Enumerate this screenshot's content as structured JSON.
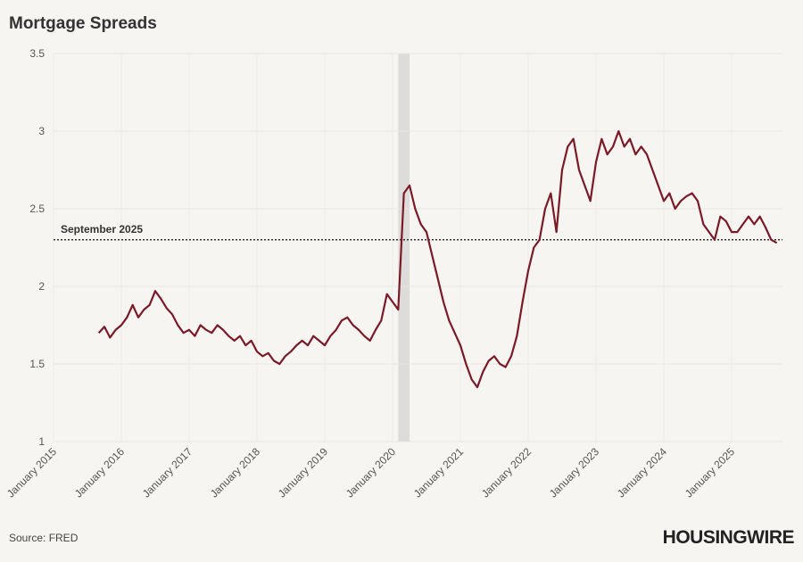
{
  "chart_data": {
    "type": "line",
    "title": "Mortgage Spreads",
    "source": "Source: FRED",
    "logo": "HOUSINGWIRE",
    "x": [
      "2015-09",
      "2015-10",
      "2015-11",
      "2015-12",
      "2016-01",
      "2016-02",
      "2016-03",
      "2016-04",
      "2016-05",
      "2016-06",
      "2016-07",
      "2016-08",
      "2016-09",
      "2016-10",
      "2016-11",
      "2016-12",
      "2017-01",
      "2017-02",
      "2017-03",
      "2017-04",
      "2017-05",
      "2017-06",
      "2017-07",
      "2017-08",
      "2017-09",
      "2017-10",
      "2017-11",
      "2017-12",
      "2018-01",
      "2018-02",
      "2018-03",
      "2018-04",
      "2018-05",
      "2018-06",
      "2018-07",
      "2018-08",
      "2018-09",
      "2018-10",
      "2018-11",
      "2018-12",
      "2019-01",
      "2019-02",
      "2019-03",
      "2019-04",
      "2019-05",
      "2019-06",
      "2019-07",
      "2019-08",
      "2019-09",
      "2019-10",
      "2019-11",
      "2019-12",
      "2020-01",
      "2020-02",
      "2020-03",
      "2020-04",
      "2020-05",
      "2020-06",
      "2020-07",
      "2020-08",
      "2020-09",
      "2020-10",
      "2020-11",
      "2020-12",
      "2021-01",
      "2021-02",
      "2021-03",
      "2021-04",
      "2021-05",
      "2021-06",
      "2021-07",
      "2021-08",
      "2021-09",
      "2021-10",
      "2021-11",
      "2021-12",
      "2022-01",
      "2022-02",
      "2022-03",
      "2022-04",
      "2022-05",
      "2022-06",
      "2022-07",
      "2022-08",
      "2022-09",
      "2022-10",
      "2022-11",
      "2022-12",
      "2023-01",
      "2023-02",
      "2023-03",
      "2023-04",
      "2023-05",
      "2023-06",
      "2023-07",
      "2023-08",
      "2023-09",
      "2023-10",
      "2023-11",
      "2023-12",
      "2024-01",
      "2024-02",
      "2024-03",
      "2024-04",
      "2024-05",
      "2024-06",
      "2024-07",
      "2024-08",
      "2024-09",
      "2024-10",
      "2024-11",
      "2024-12",
      "2025-01",
      "2025-02",
      "2025-03",
      "2025-04",
      "2025-05",
      "2025-06",
      "2025-07",
      "2025-08",
      "2025-09"
    ],
    "series": [
      {
        "name": "Mortgage Spreads",
        "color": "#7b1a26",
        "values": [
          1.7,
          1.74,
          1.67,
          1.72,
          1.75,
          1.8,
          1.88,
          1.8,
          1.85,
          1.88,
          1.97,
          1.92,
          1.86,
          1.82,
          1.75,
          1.7,
          1.72,
          1.68,
          1.75,
          1.72,
          1.7,
          1.75,
          1.72,
          1.68,
          1.65,
          1.68,
          1.62,
          1.65,
          1.58,
          1.55,
          1.57,
          1.52,
          1.5,
          1.55,
          1.58,
          1.62,
          1.65,
          1.62,
          1.68,
          1.65,
          1.62,
          1.68,
          1.72,
          1.78,
          1.8,
          1.75,
          1.72,
          1.68,
          1.65,
          1.72,
          1.78,
          1.95,
          1.9,
          1.85,
          2.6,
          2.65,
          2.5,
          2.4,
          2.35,
          2.2,
          2.05,
          1.9,
          1.78,
          1.7,
          1.62,
          1.5,
          1.4,
          1.35,
          1.45,
          1.52,
          1.55,
          1.5,
          1.48,
          1.55,
          1.68,
          1.9,
          2.1,
          2.25,
          2.3,
          2.5,
          2.6,
          2.35,
          2.75,
          2.9,
          2.95,
          2.75,
          2.65,
          2.55,
          2.8,
          2.95,
          2.85,
          2.9,
          3.0,
          2.9,
          2.95,
          2.85,
          2.9,
          2.85,
          2.75,
          2.65,
          2.55,
          2.6,
          2.5,
          2.55,
          2.58,
          2.6,
          2.55,
          2.4,
          2.35,
          2.3,
          2.45,
          2.42,
          2.35,
          2.35,
          2.4,
          2.45,
          2.4,
          2.45,
          2.38,
          2.3,
          2.28
        ]
      }
    ],
    "reference_line": {
      "value": 2.3,
      "label": "September 2025"
    },
    "shade": [
      "2020-02",
      "2020-04"
    ],
    "xlim": [
      "2015-01",
      "2025-10"
    ],
    "xticks": [
      {
        "value": "2015-01",
        "label": "January 2015"
      },
      {
        "value": "2016-01",
        "label": "January 2016"
      },
      {
        "value": "2017-01",
        "label": "January 2017"
      },
      {
        "value": "2018-01",
        "label": "January 2018"
      },
      {
        "value": "2019-01",
        "label": "January 2019"
      },
      {
        "value": "2020-01",
        "label": "January 2020"
      },
      {
        "value": "2021-01",
        "label": "January 2021"
      },
      {
        "value": "2022-01",
        "label": "January 2022"
      },
      {
        "value": "2023-01",
        "label": "January 2023"
      },
      {
        "value": "2024-01",
        "label": "January 2024"
      },
      {
        "value": "2025-01",
        "label": "January 2025"
      }
    ],
    "ylim": [
      1,
      3.5
    ],
    "yticks": [
      1,
      1.5,
      2,
      2.5,
      3,
      3.5
    ],
    "grid": true
  }
}
